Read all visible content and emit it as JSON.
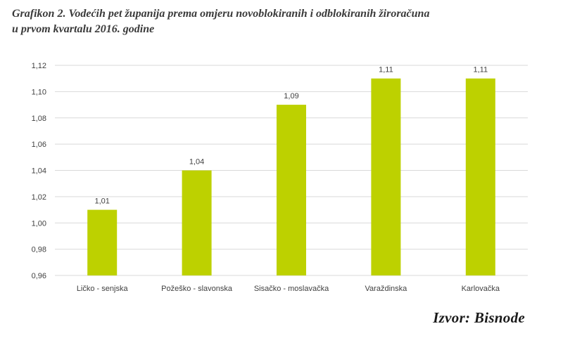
{
  "title_lines": [
    "Grafikon 2. Vodećih pet županija prema omjeru novoblokiranih i odblokiranih žiroračuna",
    "u prvom kvartalu 2016. godine"
  ],
  "source": "Izvor: Bisnode",
  "chart_data": {
    "type": "bar",
    "title": "Grafikon 2. Vodećih pet županija prema omjeru novoblokiranih i odblokiranih žiroračuna u prvom kvartalu 2016. godine",
    "categories": [
      "Ličko - senjska",
      "Požeško - slavonska",
      "Sisačko - moslavačka",
      "Varaždinska",
      "Karlovačka"
    ],
    "values": [
      1.01,
      1.04,
      1.09,
      1.11,
      1.11
    ],
    "value_labels": [
      "1,01",
      "1,04",
      "1,09",
      "1,11",
      "1,11"
    ],
    "ylim": [
      0.96,
      1.12
    ],
    "yticks": [
      0.96,
      0.98,
      1.0,
      1.02,
      1.04,
      1.06,
      1.08,
      1.1,
      1.12
    ],
    "ytick_labels": [
      "0,96",
      "0,98",
      "1,00",
      "1,02",
      "1,04",
      "1,06",
      "1,08",
      "1,10",
      "1,12"
    ],
    "xlabel": "",
    "ylabel": "",
    "grid": true,
    "legend": "none",
    "bar_color": "#bdd100",
    "grid_color": "#d9d9d9"
  }
}
